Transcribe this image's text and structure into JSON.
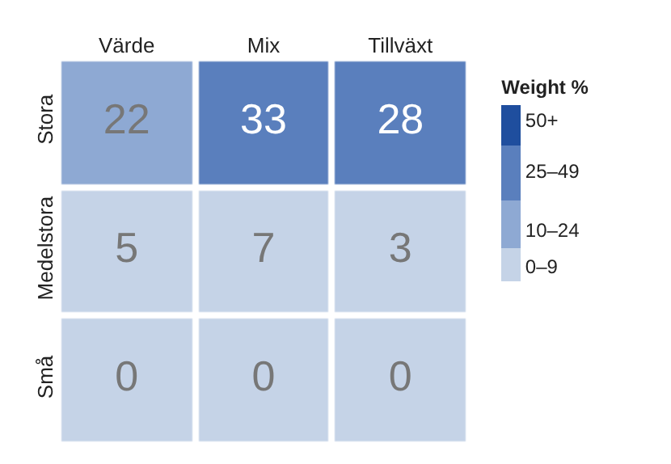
{
  "chart_data": {
    "type": "heatmap",
    "categories": [
      "Värde",
      "Mix",
      "Tillväxt"
    ],
    "y_categories": [
      "Stora",
      "Medelstora",
      "Små"
    ],
    "cells": [
      [
        22,
        33,
        28
      ],
      [
        5,
        7,
        3
      ],
      [
        0,
        0,
        0
      ]
    ],
    "data_labels": true,
    "clabel": "Weight %",
    "clim": [
      0,
      60
    ],
    "cticks": [
      {
        "value": 5,
        "label": "0–9"
      },
      {
        "value": 17.5,
        "label": "10–24"
      },
      {
        "value": 37.5,
        "label": "25–49"
      },
      {
        "value": 55,
        "label": "50+"
      }
    ],
    "colors": [
      "#c5d3e7",
      "#8ea9d3",
      "#5a7fbd",
      "#1f4e9e"
    ]
  }
}
